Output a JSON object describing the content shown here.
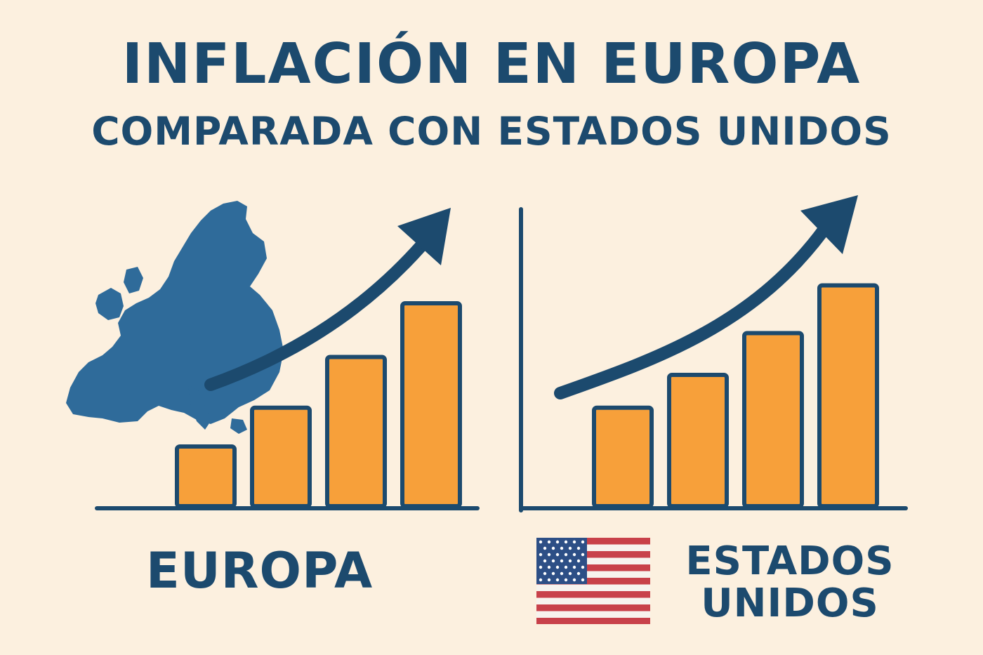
{
  "title": "INFLACIÓN EN EUROPA",
  "subtitle": "COMPARADA CON ESTADOS UNIDOS",
  "colors": {
    "background": "#fcf0df",
    "navy": "#1c4a6e",
    "bar": "#f7a03a",
    "map": "#2f6b9a",
    "flag_red": "#c8414a",
    "flag_blue": "#2d4f86"
  },
  "chart_data": [
    {
      "type": "bar",
      "name": "EUROPA",
      "label": "EUROPA",
      "icon": "europe-map-icon",
      "values": [
        1.0,
        1.65,
        2.5,
        3.4
      ],
      "trend": "up-arrow"
    },
    {
      "type": "bar",
      "name": "ESTADOS UNIDOS",
      "label_lines": [
        "ESTADOS",
        "UNIDOS"
      ],
      "icon": "us-flag-icon",
      "values": [
        1.65,
        2.2,
        2.9,
        3.7
      ],
      "trend": "up-arrow"
    }
  ]
}
